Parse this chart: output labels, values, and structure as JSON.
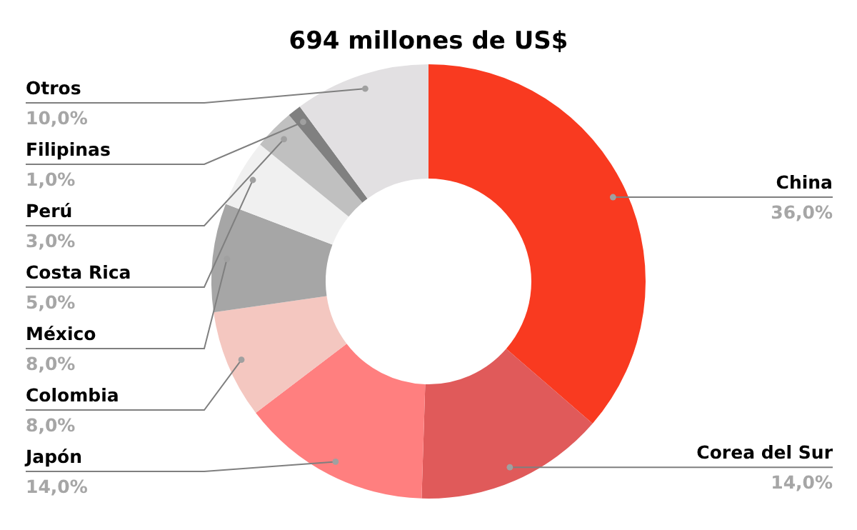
{
  "chart_data": {
    "type": "donut",
    "title": "694 millones de US$",
    "categories": [
      "China",
      "Corea del Sur",
      "Japón",
      "Colombia",
      "México",
      "Costa Rica",
      "Perú",
      "Filipinas",
      "Otros"
    ],
    "values": [
      36,
      14,
      14,
      8,
      8,
      5,
      3,
      1,
      10
    ],
    "value_labels": [
      "36,0%",
      "14,0%",
      "14,0%",
      "8,0%",
      "8,0%",
      "5,0%",
      "3,0%",
      "1,0%",
      "10,0%"
    ],
    "colors": [
      "#f93a20",
      "#e05a5a",
      "#ff7f7f",
      "#f4c7c0",
      "#a6a6a6",
      "#f0f0f0",
      "#c0c0c0",
      "#808080",
      "#e2e0e2"
    ]
  }
}
